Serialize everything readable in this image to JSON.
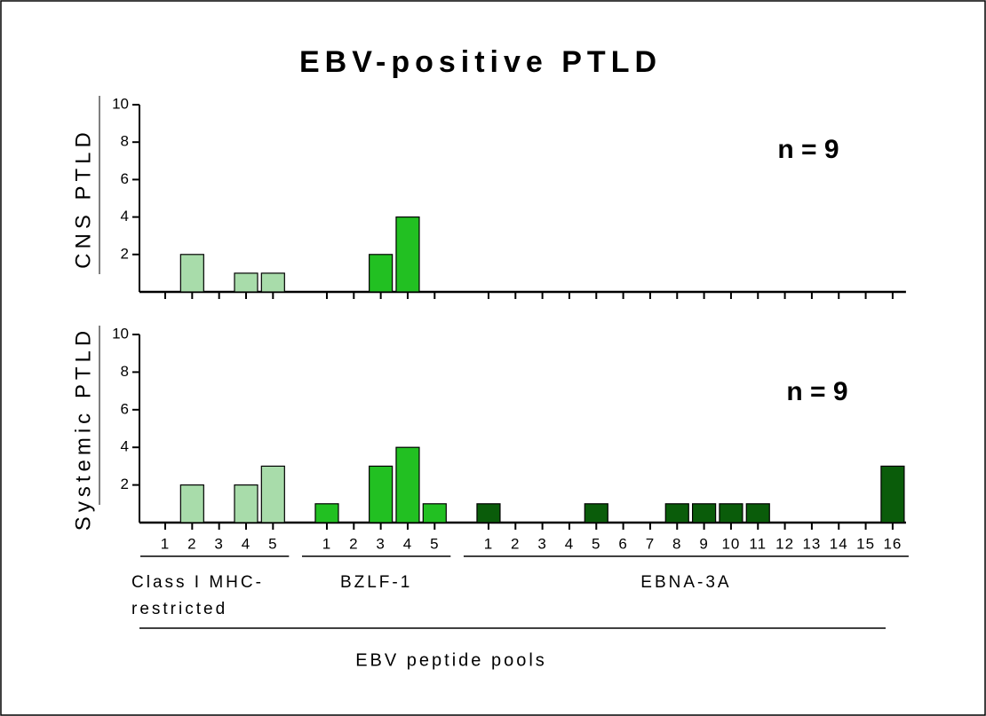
{
  "chart_data": {
    "type": "bar",
    "title": "EBV-positive PTLD",
    "xlabel": "EBV peptide pools",
    "groups": [
      {
        "label": "Class I MHC-restricted",
        "color": "#a8dcaa",
        "categories": [
          "1",
          "2",
          "3",
          "4",
          "5"
        ]
      },
      {
        "label": "BZLF-1",
        "color": "#22c022",
        "categories": [
          "1",
          "2",
          "3",
          "4",
          "5"
        ]
      },
      {
        "label": "EBNA-3A",
        "color": "#0a5c0a",
        "categories": [
          "1",
          "2",
          "3",
          "4",
          "5",
          "6",
          "7",
          "8",
          "9",
          "10",
          "11",
          "12",
          "13",
          "14",
          "15",
          "16"
        ]
      }
    ],
    "panels": [
      {
        "ylabel": "CNS PTLD",
        "annotation": "n = 9",
        "ylim": [
          0,
          10
        ],
        "yticks": [
          2,
          4,
          6,
          8,
          10
        ],
        "values": [
          [
            0,
            2,
            0,
            1,
            1
          ],
          [
            0,
            0,
            2,
            4,
            0
          ],
          [
            0,
            0,
            0,
            0,
            0,
            0,
            0,
            0,
            0,
            0,
            0,
            0,
            0,
            0,
            0,
            0
          ]
        ]
      },
      {
        "ylabel": "Systemic PTLD",
        "annotation": "n = 9",
        "ylim": [
          0,
          10
        ],
        "yticks": [
          2,
          4,
          6,
          8,
          10
        ],
        "values": [
          [
            0,
            2,
            0,
            2,
            3
          ],
          [
            1,
            0,
            3,
            4,
            1
          ],
          [
            1,
            0,
            0,
            0,
            1,
            0,
            0,
            1,
            1,
            1,
            1,
            0,
            0,
            0,
            0,
            3
          ]
        ]
      }
    ]
  }
}
